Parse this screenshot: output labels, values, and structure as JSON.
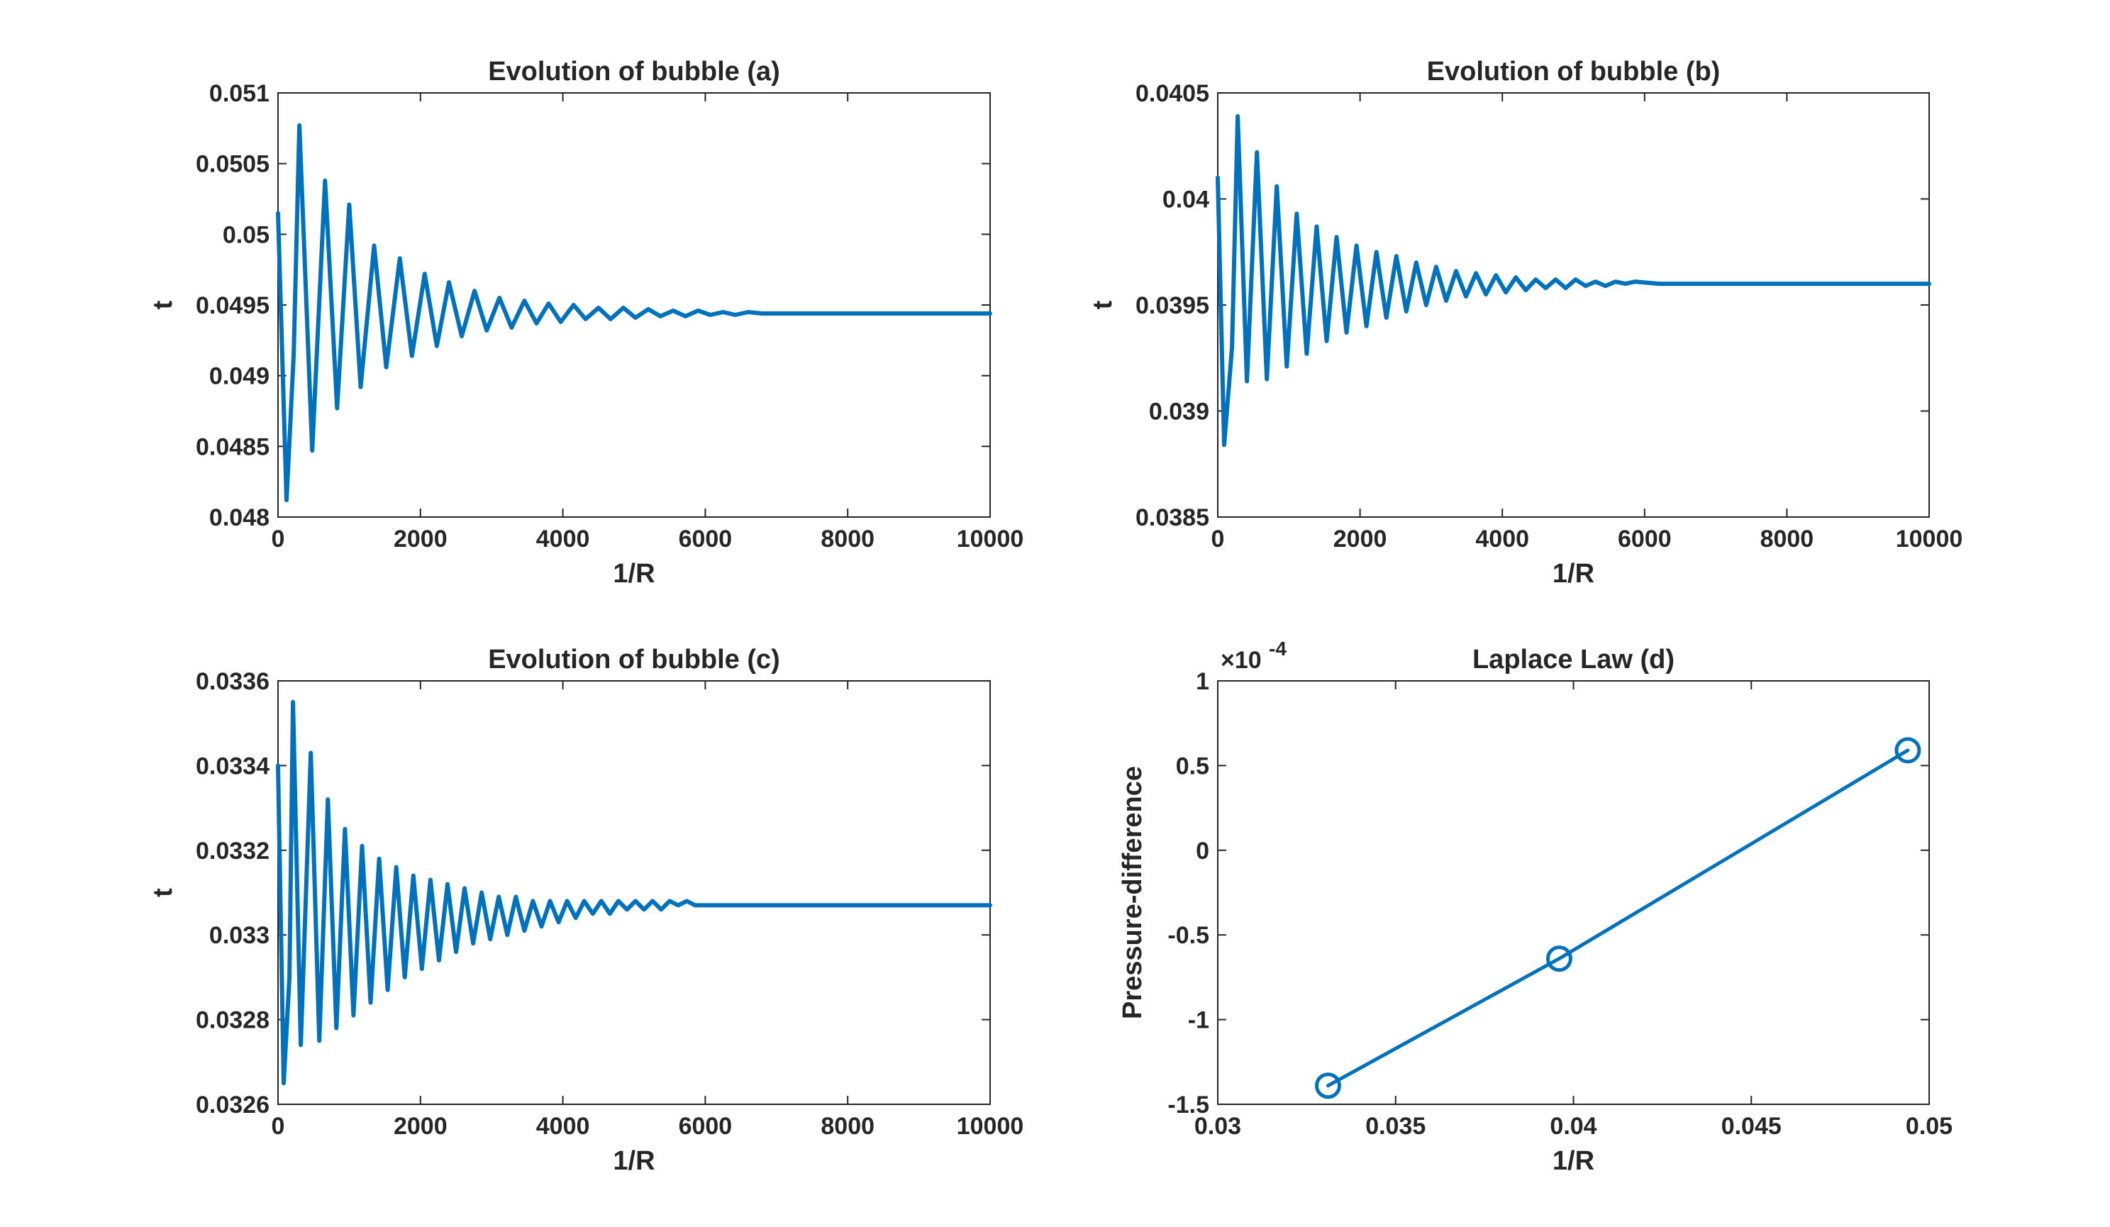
{
  "colors": {
    "series": "#0072BD",
    "axis": "#262626",
    "background": "#ffffff"
  },
  "chart_data": [
    {
      "type": "line",
      "title": "Evolution of bubble (a)",
      "xlabel": "1/R",
      "ylabel": "t",
      "xlim": [
        0,
        10000
      ],
      "ylim": [
        0.048,
        0.051
      ],
      "xticks": [
        0,
        2000,
        4000,
        6000,
        8000,
        10000
      ],
      "xtick_labels": [
        "0",
        "2000",
        "4000",
        "6000",
        "8000",
        "10000"
      ],
      "yticks": [
        0.048,
        0.0485,
        0.049,
        0.0495,
        0.05,
        0.0505,
        0.051
      ],
      "ytick_labels": [
        "0.048",
        "0.0485",
        "0.049",
        "0.0495",
        "0.05",
        "0.0505",
        "0.051"
      ],
      "grid": false,
      "series": [
        {
          "x": [
            0,
            120,
            220,
            300,
            480,
            660,
            830,
            1000,
            1160,
            1350,
            1520,
            1710,
            1880,
            2060,
            2230,
            2400,
            2580,
            2760,
            2930,
            3110,
            3280,
            3460,
            3630,
            3800,
            3970,
            4150,
            4320,
            4500,
            4670,
            4850,
            5020,
            5200,
            5370,
            5550,
            5720,
            5900,
            6070,
            6250,
            6420,
            6600,
            6800,
            7200,
            7600,
            8000,
            10000
          ],
          "y": [
            0.05015,
            0.04812,
            0.04915,
            0.05077,
            0.04847,
            0.05038,
            0.04877,
            0.05021,
            0.04892,
            0.04992,
            0.04906,
            0.04983,
            0.04914,
            0.04972,
            0.04921,
            0.04966,
            0.04928,
            0.0496,
            0.04932,
            0.04955,
            0.04934,
            0.04953,
            0.04937,
            0.04951,
            0.04938,
            0.0495,
            0.0494,
            0.04948,
            0.0494,
            0.04948,
            0.04941,
            0.04947,
            0.04942,
            0.04946,
            0.04942,
            0.04946,
            0.04943,
            0.04945,
            0.04943,
            0.04945,
            0.04944,
            0.04944,
            0.04944,
            0.04944,
            0.04944
          ]
        }
      ]
    },
    {
      "type": "line",
      "title": "Evolution of bubble (b)",
      "xlabel": "1/R",
      "ylabel": "t",
      "xlim": [
        0,
        10000
      ],
      "ylim": [
        0.0385,
        0.0405
      ],
      "xticks": [
        0,
        2000,
        4000,
        6000,
        8000,
        10000
      ],
      "xtick_labels": [
        "0",
        "2000",
        "4000",
        "6000",
        "8000",
        "10000"
      ],
      "yticks": [
        0.0385,
        0.039,
        0.0395,
        0.04,
        0.0405
      ],
      "ytick_labels": [
        "0.0385",
        "0.039",
        "0.0395",
        "0.04",
        "0.0405"
      ],
      "grid": false,
      "series": [
        {
          "x": [
            0,
            90,
            200,
            280,
            410,
            550,
            690,
            830,
            970,
            1110,
            1250,
            1390,
            1530,
            1670,
            1810,
            1950,
            2090,
            2230,
            2370,
            2510,
            2650,
            2790,
            2930,
            3070,
            3210,
            3350,
            3490,
            3630,
            3770,
            3910,
            4050,
            4190,
            4330,
            4470,
            4610,
            4750,
            4890,
            5030,
            5170,
            5310,
            5450,
            5590,
            5730,
            5870,
            6200,
            7000,
            8000,
            10000
          ],
          "y": [
            0.0401,
            0.03884,
            0.0393,
            0.04039,
            0.03914,
            0.04022,
            0.03915,
            0.04006,
            0.03921,
            0.03993,
            0.03927,
            0.03987,
            0.03933,
            0.03982,
            0.03937,
            0.03978,
            0.0394,
            0.03975,
            0.03944,
            0.03973,
            0.03947,
            0.0397,
            0.0395,
            0.03968,
            0.03952,
            0.03966,
            0.03954,
            0.03965,
            0.03955,
            0.03964,
            0.03956,
            0.03963,
            0.03957,
            0.03962,
            0.03958,
            0.03962,
            0.03958,
            0.03962,
            0.03959,
            0.03961,
            0.03959,
            0.03961,
            0.0396,
            0.03961,
            0.0396,
            0.0396,
            0.0396,
            0.0396
          ]
        }
      ]
    },
    {
      "type": "line",
      "title": "Evolution of bubble (c)",
      "xlabel": "1/R",
      "ylabel": "t",
      "xlim": [
        0,
        10000
      ],
      "ylim": [
        0.0326,
        0.0336
      ],
      "xticks": [
        0,
        2000,
        4000,
        6000,
        8000,
        10000
      ],
      "xtick_labels": [
        "0",
        "2000",
        "4000",
        "6000",
        "8000",
        "10000"
      ],
      "yticks": [
        0.0326,
        0.0328,
        0.033,
        0.0332,
        0.0334,
        0.0336
      ],
      "ytick_labels": [
        "0.0326",
        "0.0328",
        "0.033",
        "0.0332",
        "0.0334",
        "0.0336"
      ],
      "grid": false,
      "series": [
        {
          "x": [
            0,
            80,
            160,
            210,
            320,
            460,
            580,
            700,
            820,
            940,
            1060,
            1180,
            1300,
            1420,
            1540,
            1660,
            1780,
            1900,
            2020,
            2140,
            2260,
            2380,
            2500,
            2620,
            2740,
            2860,
            2980,
            3100,
            3220,
            3340,
            3460,
            3580,
            3700,
            3820,
            3940,
            4060,
            4180,
            4300,
            4420,
            4540,
            4660,
            4780,
            4900,
            5020,
            5140,
            5260,
            5380,
            5500,
            5620,
            5740,
            5860,
            6000,
            6500,
            7000,
            8000,
            10000
          ],
          "y": [
            0.0334,
            0.03265,
            0.0329,
            0.03355,
            0.03274,
            0.03343,
            0.03275,
            0.03332,
            0.03278,
            0.03325,
            0.03281,
            0.03321,
            0.03284,
            0.03318,
            0.03287,
            0.03316,
            0.0329,
            0.03314,
            0.03292,
            0.03313,
            0.03294,
            0.03312,
            0.03296,
            0.03311,
            0.03298,
            0.0331,
            0.03299,
            0.03309,
            0.033,
            0.03309,
            0.03301,
            0.03308,
            0.03302,
            0.03308,
            0.03303,
            0.03308,
            0.03304,
            0.03308,
            0.03305,
            0.03308,
            0.03305,
            0.03308,
            0.03306,
            0.03308,
            0.03306,
            0.03308,
            0.03306,
            0.03308,
            0.03307,
            0.03308,
            0.03307,
            0.03307,
            0.03307,
            0.03307,
            0.03307,
            0.03307
          ]
        }
      ]
    },
    {
      "type": "line",
      "title": "Laplace Law (d)",
      "xlabel": "1/R",
      "ylabel": "Pressure-difference",
      "exponent_label": "×10",
      "exponent_power": "-4",
      "xlim": [
        0.03,
        0.05
      ],
      "ylim": [
        -1.5,
        1
      ],
      "xticks": [
        0.03,
        0.035,
        0.04,
        0.045,
        0.05
      ],
      "xtick_labels": [
        "0.03",
        "0.035",
        "0.04",
        "0.045",
        "0.05"
      ],
      "yticks": [
        -1.5,
        -1,
        -0.5,
        0,
        0.5,
        1
      ],
      "ytick_labels": [
        "-1.5",
        "-1",
        "-0.5",
        "0",
        "0.5",
        "1"
      ],
      "grid": false,
      "markers": "circle",
      "series": [
        {
          "x": [
            0.0331,
            0.0396,
            0.0494
          ],
          "y": [
            -1.39,
            -0.64,
            0.59
          ]
        }
      ]
    }
  ]
}
